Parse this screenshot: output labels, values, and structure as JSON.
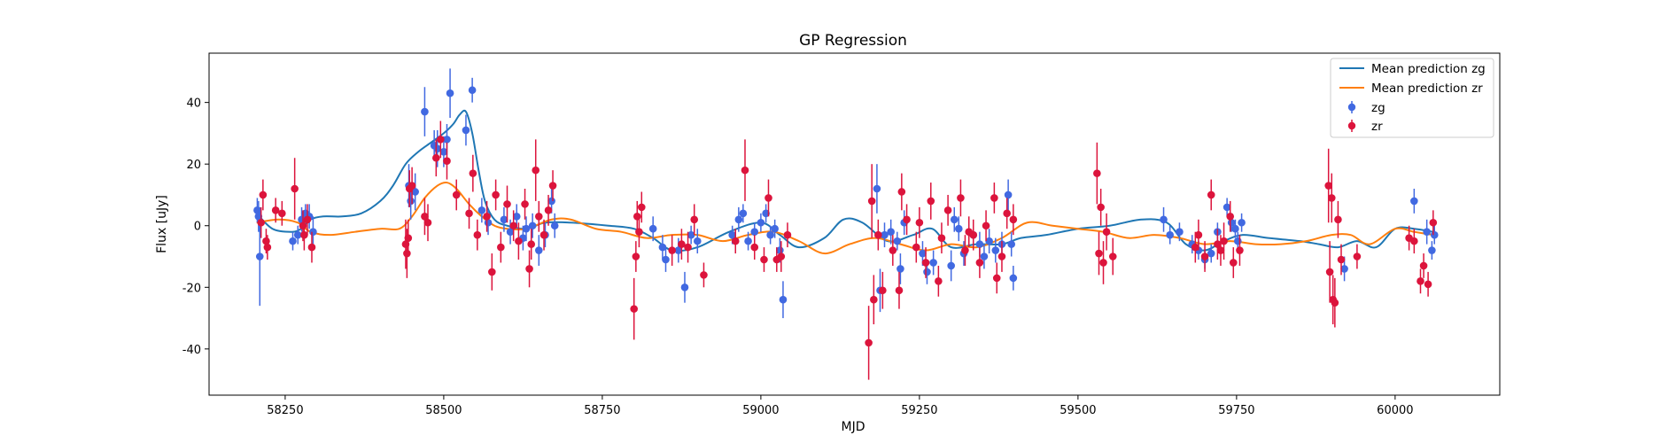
{
  "chart_data": {
    "type": "scatter",
    "title": "GP Regression",
    "xlabel": "MJD",
    "ylabel": "Flux [uJy]",
    "xlim": [
      58130,
      60165
    ],
    "ylim": [
      -55,
      56
    ],
    "xticks": [
      58250,
      58500,
      58750,
      59000,
      59250,
      59500,
      59750,
      60000
    ],
    "yticks": [
      -40,
      -20,
      0,
      20,
      40
    ],
    "grid": false,
    "legend_position": "top-right",
    "lines": [
      {
        "name": "Mean prediction zg",
        "color": "#1f77b4",
        "x": [
          58205,
          58230,
          58260,
          58275,
          58290,
          58310,
          58340,
          58370,
          58400,
          58420,
          58440,
          58460,
          58480,
          58500,
          58515,
          58525,
          58535,
          58545,
          58555,
          58565,
          58580,
          58600,
          58630,
          58660,
          58700,
          58760,
          58800,
          58830,
          58860,
          58900,
          58950,
          59000,
          59030,
          59060,
          59100,
          59130,
          59160,
          59200,
          59240,
          59270,
          59300,
          59340,
          59380,
          59410,
          59450,
          59500,
          59550,
          59600,
          59640,
          59670,
          59700,
          59730,
          59760,
          59800,
          59850,
          59880,
          59910,
          59940,
          59970,
          60000,
          60030,
          60060
        ],
        "y": [
          4,
          -1,
          -2,
          -1,
          2,
          3,
          3,
          4,
          8,
          13,
          20,
          24,
          27,
          30,
          33,
          36,
          37,
          30,
          18,
          8,
          2,
          0,
          -1,
          1,
          1,
          0,
          -1,
          -4,
          -8,
          -7,
          -2,
          1,
          -3,
          -7,
          -4,
          2,
          1,
          -5,
          -3,
          -1,
          -7,
          -6,
          -6,
          -4,
          -3,
          -1,
          0,
          2,
          1,
          -6,
          -8,
          -5,
          -3,
          -4,
          -5,
          -6,
          -7,
          -5,
          -7,
          -1,
          -1,
          -2
        ]
      },
      {
        "name": "Mean prediction zr",
        "color": "#ff7f0e",
        "x": [
          58205,
          58240,
          58270,
          58290,
          58320,
          58360,
          58400,
          58430,
          58450,
          58470,
          58490,
          58505,
          58520,
          58540,
          58560,
          58580,
          58600,
          58630,
          58670,
          58700,
          58740,
          58780,
          58820,
          58860,
          58900,
          58940,
          58980,
          59020,
          59060,
          59100,
          59140,
          59180,
          59220,
          59260,
          59300,
          59340,
          59380,
          59420,
          59460,
          59500,
          59540,
          59580,
          59620,
          59660,
          59700,
          59740,
          59780,
          59820,
          59860,
          59900,
          59930,
          59960,
          60000,
          60030,
          60060
        ],
        "y": [
          1,
          2,
          1,
          -2,
          -3,
          -2,
          -1,
          -1,
          3,
          9,
          13,
          14,
          12,
          7,
          3,
          0,
          -1,
          -1,
          2,
          2,
          -1,
          -2,
          -4,
          -3,
          -3,
          -5,
          -3,
          -2,
          -5,
          -9,
          -6,
          -4,
          -6,
          -8,
          -6,
          -7,
          -4,
          1,
          0,
          -1,
          -2,
          -4,
          -3,
          -4,
          -6,
          -5,
          -6,
          -6,
          -5,
          -3,
          -3,
          -6,
          -1,
          -2,
          -3
        ]
      }
    ],
    "series": [
      {
        "name": "zg",
        "color": "#4169e1",
        "points": [
          [
            58206,
            5,
            4
          ],
          [
            58208,
            3,
            5
          ],
          [
            58210,
            -10,
            16
          ],
          [
            58262,
            -5,
            3
          ],
          [
            58270,
            -3,
            3
          ],
          [
            58276,
            2,
            4
          ],
          [
            58282,
            4,
            3
          ],
          [
            58288,
            3,
            4
          ],
          [
            58294,
            -2,
            5
          ],
          [
            58445,
            13,
            7
          ],
          [
            58448,
            8,
            6
          ],
          [
            58455,
            11,
            6
          ],
          [
            58470,
            37,
            8
          ],
          [
            58485,
            26,
            5
          ],
          [
            58490,
            25,
            6
          ],
          [
            58500,
            24,
            5
          ],
          [
            58505,
            28,
            5
          ],
          [
            58510,
            43,
            8
          ],
          [
            58535,
            31,
            5
          ],
          [
            58545,
            44,
            4
          ],
          [
            58560,
            5,
            4
          ],
          [
            58570,
            1,
            4
          ],
          [
            58595,
            2,
            4
          ],
          [
            58605,
            -2,
            4
          ],
          [
            58615,
            3,
            4
          ],
          [
            58625,
            -4,
            4
          ],
          [
            58630,
            -1,
            4
          ],
          [
            58640,
            0,
            4
          ],
          [
            58650,
            -8,
            5
          ],
          [
            58660,
            -3,
            4
          ],
          [
            58670,
            8,
            4
          ],
          [
            58675,
            0,
            4
          ],
          [
            58830,
            -1,
            4
          ],
          [
            58845,
            -7,
            4
          ],
          [
            58850,
            -11,
            4
          ],
          [
            58870,
            -8,
            4
          ],
          [
            58880,
            -20,
            5
          ],
          [
            58890,
            -3,
            3
          ],
          [
            58900,
            -5,
            4
          ],
          [
            58955,
            -3,
            3
          ],
          [
            58965,
            2,
            4
          ],
          [
            58972,
            4,
            3
          ],
          [
            58980,
            -5,
            3
          ],
          [
            58990,
            -2,
            3
          ],
          [
            59000,
            1,
            3
          ],
          [
            59008,
            4,
            3
          ],
          [
            59015,
            -3,
            3
          ],
          [
            59022,
            -1,
            3
          ],
          [
            59030,
            -8,
            4
          ],
          [
            59035,
            -24,
            6
          ],
          [
            59183,
            12,
            8
          ],
          [
            59188,
            -21,
            7
          ],
          [
            59195,
            -3,
            4
          ],
          [
            59205,
            -2,
            4
          ],
          [
            59215,
            -5,
            3
          ],
          [
            59220,
            -14,
            5
          ],
          [
            59226,
            1,
            4
          ],
          [
            59255,
            -9,
            4
          ],
          [
            59262,
            -15,
            4
          ],
          [
            59272,
            -12,
            4
          ],
          [
            59300,
            -13,
            5
          ],
          [
            59305,
            2,
            4
          ],
          [
            59312,
            -1,
            4
          ],
          [
            59320,
            -9,
            4
          ],
          [
            59335,
            -3,
            4
          ],
          [
            59345,
            -6,
            4
          ],
          [
            59352,
            -10,
            4
          ],
          [
            59360,
            -5,
            4
          ],
          [
            59370,
            -8,
            4
          ],
          [
            59380,
            -6,
            4
          ],
          [
            59390,
            10,
            5
          ],
          [
            59395,
            -6,
            4
          ],
          [
            59398,
            -17,
            4
          ],
          [
            59635,
            2,
            4
          ],
          [
            59645,
            -3,
            3
          ],
          [
            59660,
            -2,
            3
          ],
          [
            59680,
            -6,
            3
          ],
          [
            59690,
            -8,
            3
          ],
          [
            59700,
            -11,
            3
          ],
          [
            59710,
            -9,
            3
          ],
          [
            59720,
            -2,
            3
          ],
          [
            59735,
            6,
            3
          ],
          [
            59742,
            1,
            3
          ],
          [
            59748,
            -1,
            3
          ],
          [
            59752,
            -5,
            3
          ],
          [
            59758,
            1,
            3
          ],
          [
            59920,
            -14,
            4
          ],
          [
            60030,
            8,
            4
          ],
          [
            60050,
            -2,
            4
          ],
          [
            60058,
            -8,
            3
          ],
          [
            60062,
            -3,
            3
          ]
        ]
      },
      {
        "name": "zr",
        "color": "#dc143c",
        "points": [
          [
            58212,
            1,
            5
          ],
          [
            58215,
            10,
            5
          ],
          [
            58220,
            -5,
            4
          ],
          [
            58222,
            -7,
            4
          ],
          [
            58235,
            5,
            4
          ],
          [
            58245,
            4,
            4
          ],
          [
            58265,
            12,
            10
          ],
          [
            58278,
            0,
            5
          ],
          [
            58280,
            -3,
            5
          ],
          [
            58285,
            2,
            5
          ],
          [
            58292,
            -7,
            5
          ],
          [
            58440,
            -6,
            8
          ],
          [
            58442,
            -9,
            8
          ],
          [
            58444,
            -4,
            6
          ],
          [
            58446,
            12,
            6
          ],
          [
            58450,
            13,
            6
          ],
          [
            58470,
            3,
            6
          ],
          [
            58475,
            1,
            6
          ],
          [
            58488,
            22,
            6
          ],
          [
            58495,
            28,
            6
          ],
          [
            58505,
            21,
            6
          ],
          [
            58520,
            10,
            5
          ],
          [
            58540,
            4,
            5
          ],
          [
            58546,
            17,
            6
          ],
          [
            58553,
            -3,
            5
          ],
          [
            58568,
            3,
            5
          ],
          [
            58576,
            -15,
            6
          ],
          [
            58582,
            10,
            5
          ],
          [
            58590,
            -7,
            5
          ],
          [
            58600,
            7,
            6
          ],
          [
            58610,
            0,
            5
          ],
          [
            58618,
            -5,
            6
          ],
          [
            58628,
            7,
            5
          ],
          [
            58635,
            -14,
            6
          ],
          [
            58638,
            -6,
            5
          ],
          [
            58645,
            18,
            10
          ],
          [
            58650,
            3,
            5
          ],
          [
            58658,
            -3,
            5
          ],
          [
            58665,
            5,
            5
          ],
          [
            58672,
            13,
            5
          ],
          [
            58800,
            -27,
            10
          ],
          [
            58803,
            -10,
            5
          ],
          [
            58805,
            3,
            5
          ],
          [
            58808,
            -2,
            5
          ],
          [
            58812,
            6,
            5
          ],
          [
            58860,
            -8,
            5
          ],
          [
            58875,
            -6,
            5
          ],
          [
            58885,
            -7,
            5
          ],
          [
            58895,
            2,
            5
          ],
          [
            58910,
            -16,
            4
          ],
          [
            58960,
            -5,
            4
          ],
          [
            58975,
            18,
            10
          ],
          [
            58990,
            -7,
            4
          ],
          [
            59005,
            -11,
            4
          ],
          [
            59012,
            9,
            6
          ],
          [
            59025,
            -11,
            4
          ],
          [
            59032,
            -10,
            5
          ],
          [
            59042,
            -3,
            4
          ],
          [
            59170,
            -38,
            12
          ],
          [
            59175,
            8,
            12
          ],
          [
            59178,
            -24,
            8
          ],
          [
            59185,
            -3,
            5
          ],
          [
            59192,
            -21,
            6
          ],
          [
            59208,
            -8,
            5
          ],
          [
            59218,
            -21,
            6
          ],
          [
            59222,
            11,
            6
          ],
          [
            59230,
            2,
            5
          ],
          [
            59245,
            -7,
            5
          ],
          [
            59250,
            1,
            5
          ],
          [
            59260,
            -12,
            5
          ],
          [
            59268,
            8,
            6
          ],
          [
            59280,
            -18,
            5
          ],
          [
            59285,
            -4,
            5
          ],
          [
            59295,
            5,
            5
          ],
          [
            59315,
            9,
            6
          ],
          [
            59322,
            -8,
            5
          ],
          [
            59328,
            -2,
            5
          ],
          [
            59335,
            -3,
            5
          ],
          [
            59345,
            -12,
            5
          ],
          [
            59355,
            0,
            5
          ],
          [
            59368,
            9,
            5
          ],
          [
            59372,
            -17,
            5
          ],
          [
            59380,
            -10,
            5
          ],
          [
            59388,
            4,
            5
          ],
          [
            59398,
            2,
            5
          ],
          [
            59530,
            17,
            10
          ],
          [
            59533,
            -9,
            7
          ],
          [
            59536,
            6,
            6
          ],
          [
            59540,
            -12,
            7
          ],
          [
            59545,
            -2,
            6
          ],
          [
            59555,
            -10,
            6
          ],
          [
            59685,
            -7,
            5
          ],
          [
            59690,
            -3,
            5
          ],
          [
            59700,
            -10,
            5
          ],
          [
            59710,
            10,
            5
          ],
          [
            59720,
            -6,
            5
          ],
          [
            59725,
            -8,
            5
          ],
          [
            59730,
            -5,
            6
          ],
          [
            59740,
            3,
            5
          ],
          [
            59745,
            -12,
            5
          ],
          [
            59755,
            -8,
            5
          ],
          [
            59895,
            13,
            12
          ],
          [
            59897,
            -15,
            10
          ],
          [
            59900,
            9,
            8
          ],
          [
            59902,
            -24,
            8
          ],
          [
            59905,
            -25,
            8
          ],
          [
            59910,
            2,
            6
          ],
          [
            59915,
            -11,
            5
          ],
          [
            59940,
            -10,
            4
          ],
          [
            60022,
            -4,
            4
          ],
          [
            60030,
            -5,
            4
          ],
          [
            60040,
            -18,
            4
          ],
          [
            60045,
            -13,
            4
          ],
          [
            60052,
            -19,
            4
          ],
          [
            60060,
            1,
            4
          ]
        ]
      }
    ]
  }
}
